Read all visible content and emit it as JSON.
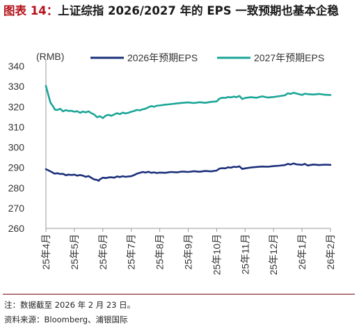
{
  "title": {
    "fig_label": "图表 14：",
    "text": "上证综指 2026/2027 年的 EPS 一致预期也基本企稳"
  },
  "footer": {
    "note": "注：数据截至 2026 年 2 月 23 日。",
    "source": "资料来源：Bloomberg、浦银国际"
  },
  "colors": {
    "title_accent": "#b5121b",
    "series_2026": "#1b2f7a",
    "series_2027": "#1aa596",
    "axis": "#999999",
    "rule": "#7a0b10"
  },
  "chart_data": {
    "type": "line",
    "unit_label": "(RMB)",
    "ylim": [
      260,
      340
    ],
    "yticks": [
      260,
      270,
      280,
      290,
      300,
      310,
      320,
      330,
      340
    ],
    "categories": [
      "25年4月",
      "25年5月",
      "25年6月",
      "25年7月",
      "25年8月",
      "25年9月",
      "25年10月",
      "25年11月",
      "25年12月",
      "26年1月",
      "26年2月"
    ],
    "grid": false,
    "legend_position": "top",
    "series": [
      {
        "name": "2026年预期EPS",
        "color": "#1b2f7a",
        "points": [
          [
            0,
            289.2
          ],
          [
            0.1,
            288.5
          ],
          [
            0.2,
            287.8
          ],
          [
            0.3,
            287.0
          ],
          [
            0.4,
            287.2
          ],
          [
            0.5,
            286.8
          ],
          [
            0.6,
            286.9
          ],
          [
            0.7,
            286.2
          ],
          [
            0.8,
            286.5
          ],
          [
            0.9,
            286.3
          ],
          [
            1.0,
            286.5
          ],
          [
            1.1,
            286.0
          ],
          [
            1.2,
            286.3
          ],
          [
            1.3,
            286.0
          ],
          [
            1.4,
            285.4
          ],
          [
            1.5,
            285.8
          ],
          [
            1.6,
            284.9
          ],
          [
            1.7,
            284.1
          ],
          [
            1.8,
            283.9
          ],
          [
            1.85,
            283.4
          ],
          [
            1.9,
            284.2
          ],
          [
            2.0,
            285.0
          ],
          [
            2.1,
            284.8
          ],
          [
            2.2,
            285.1
          ],
          [
            2.3,
            285.2
          ],
          [
            2.4,
            285.0
          ],
          [
            2.5,
            285.6
          ],
          [
            2.6,
            285.3
          ],
          [
            2.7,
            285.7
          ],
          [
            2.8,
            285.4
          ],
          [
            2.9,
            285.6
          ],
          [
            3.0,
            285.7
          ],
          [
            3.1,
            286.3
          ],
          [
            3.2,
            287.0
          ],
          [
            3.3,
            287.4
          ],
          [
            3.4,
            287.8
          ],
          [
            3.5,
            287.5
          ],
          [
            3.6,
            287.9
          ],
          [
            3.7,
            287.4
          ],
          [
            3.8,
            287.6
          ],
          [
            3.9,
            287.3
          ],
          [
            4.0,
            287.5
          ],
          [
            4.2,
            287.4
          ],
          [
            4.4,
            287.8
          ],
          [
            4.6,
            287.6
          ],
          [
            4.8,
            288.0
          ],
          [
            5.0,
            287.8
          ],
          [
            5.2,
            288.2
          ],
          [
            5.4,
            287.9
          ],
          [
            5.6,
            288.3
          ],
          [
            5.8,
            288.1
          ],
          [
            6.0,
            288.5
          ],
          [
            6.1,
            289.5
          ],
          [
            6.2,
            289.7
          ],
          [
            6.3,
            289.6
          ],
          [
            6.4,
            290.1
          ],
          [
            6.5,
            289.9
          ],
          [
            6.6,
            290.4
          ],
          [
            6.7,
            290.2
          ],
          [
            6.8,
            290.6
          ],
          [
            6.9,
            289.3
          ],
          [
            7.0,
            289.6
          ],
          [
            7.2,
            290.0
          ],
          [
            7.4,
            290.3
          ],
          [
            7.6,
            290.5
          ],
          [
            7.8,
            290.4
          ],
          [
            8.0,
            290.7
          ],
          [
            8.2,
            290.9
          ],
          [
            8.4,
            291.2
          ],
          [
            8.5,
            291.8
          ],
          [
            8.6,
            291.5
          ],
          [
            8.7,
            292.0
          ],
          [
            8.8,
            291.6
          ],
          [
            9.0,
            291.3
          ],
          [
            9.1,
            291.8
          ],
          [
            9.2,
            291.0
          ],
          [
            9.4,
            291.5
          ],
          [
            9.6,
            291.2
          ],
          [
            9.8,
            291.4
          ],
          [
            10.0,
            291.3
          ]
        ]
      },
      {
        "name": "2027年预期EPS",
        "color": "#1aa596",
        "points": [
          [
            0,
            330.3
          ],
          [
            0.08,
            326.0
          ],
          [
            0.16,
            322.0
          ],
          [
            0.24,
            320.4
          ],
          [
            0.32,
            318.5
          ],
          [
            0.4,
            318.4
          ],
          [
            0.5,
            319.0
          ],
          [
            0.6,
            317.7
          ],
          [
            0.7,
            318.3
          ],
          [
            0.8,
            317.9
          ],
          [
            0.9,
            318.0
          ],
          [
            1.0,
            317.5
          ],
          [
            1.1,
            317.8
          ],
          [
            1.2,
            317.0
          ],
          [
            1.3,
            317.6
          ],
          [
            1.4,
            317.2
          ],
          [
            1.5,
            317.7
          ],
          [
            1.6,
            316.8
          ],
          [
            1.7,
            316.1
          ],
          [
            1.8,
            314.8
          ],
          [
            1.9,
            315.3
          ],
          [
            2.0,
            314.4
          ],
          [
            2.1,
            315.6
          ],
          [
            2.2,
            316.0
          ],
          [
            2.3,
            315.5
          ],
          [
            2.4,
            316.2
          ],
          [
            2.5,
            316.8
          ],
          [
            2.6,
            316.3
          ],
          [
            2.7,
            317.1
          ],
          [
            2.8,
            316.7
          ],
          [
            2.9,
            317.0
          ],
          [
            3.0,
            317.5
          ],
          [
            3.1,
            317.9
          ],
          [
            3.2,
            318.4
          ],
          [
            3.3,
            318.2
          ],
          [
            3.4,
            318.7
          ],
          [
            3.5,
            319.0
          ],
          [
            3.6,
            319.7
          ],
          [
            3.7,
            320.3
          ],
          [
            3.8,
            320.0
          ],
          [
            3.9,
            320.5
          ],
          [
            4.0,
            320.6
          ],
          [
            4.2,
            321.0
          ],
          [
            4.4,
            321.3
          ],
          [
            4.6,
            321.6
          ],
          [
            4.8,
            321.9
          ],
          [
            5.0,
            322.1
          ],
          [
            5.2,
            321.8
          ],
          [
            5.4,
            322.2
          ],
          [
            5.6,
            321.9
          ],
          [
            5.8,
            322.4
          ],
          [
            6.0,
            322.6
          ],
          [
            6.1,
            324.0
          ],
          [
            6.2,
            324.4
          ],
          [
            6.3,
            324.3
          ],
          [
            6.4,
            324.8
          ],
          [
            6.5,
            324.6
          ],
          [
            6.6,
            325.0
          ],
          [
            6.7,
            324.7
          ],
          [
            6.8,
            325.3
          ],
          [
            6.9,
            323.8
          ],
          [
            7.0,
            324.3
          ],
          [
            7.2,
            324.7
          ],
          [
            7.4,
            324.4
          ],
          [
            7.6,
            325.1
          ],
          [
            7.8,
            324.5
          ],
          [
            8.0,
            324.8
          ],
          [
            8.2,
            325.2
          ],
          [
            8.4,
            325.6
          ],
          [
            8.5,
            326.6
          ],
          [
            8.6,
            326.3
          ],
          [
            8.7,
            326.9
          ],
          [
            8.8,
            326.5
          ],
          [
            9.0,
            325.8
          ],
          [
            9.1,
            326.4
          ],
          [
            9.2,
            326.2
          ],
          [
            9.4,
            326.0
          ],
          [
            9.6,
            326.3
          ],
          [
            9.8,
            325.9
          ],
          [
            10.0,
            325.8
          ]
        ]
      }
    ]
  }
}
